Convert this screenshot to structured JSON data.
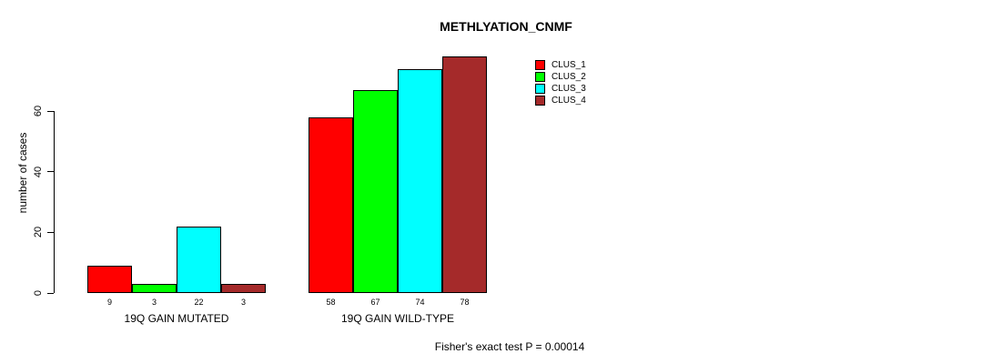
{
  "chart_data": {
    "type": "bar",
    "title": "METHLYATION_CNMF",
    "ylabel": "number of cases",
    "xlabel": "",
    "categories": [
      "19Q GAIN MUTATED",
      "19Q GAIN WILD-TYPE"
    ],
    "series": [
      {
        "name": "CLUS_1",
        "color": "#FF0000",
        "values": [
          9,
          58
        ]
      },
      {
        "name": "CLUS_2",
        "color": "#00FF00",
        "values": [
          3,
          67
        ]
      },
      {
        "name": "CLUS_3",
        "color": "#00FFFF",
        "values": [
          22,
          74
        ]
      },
      {
        "name": "CLUS_4",
        "color": "#A52A2A",
        "values": [
          3,
          78
        ]
      }
    ],
    "bar_value_labels": [
      [
        "9",
        "3",
        "22",
        "3"
      ],
      [
        "58",
        "67",
        "74",
        "78"
      ]
    ],
    "y_ticks": [
      0,
      20,
      40,
      60
    ],
    "ylim": [
      0,
      80
    ],
    "grid": false,
    "legend_position": "upper-right-inside",
    "annotation": "Fisher's exact test P = 0.00014",
    "axis_color": "#000000",
    "background_color": "#FFFFFF"
  }
}
